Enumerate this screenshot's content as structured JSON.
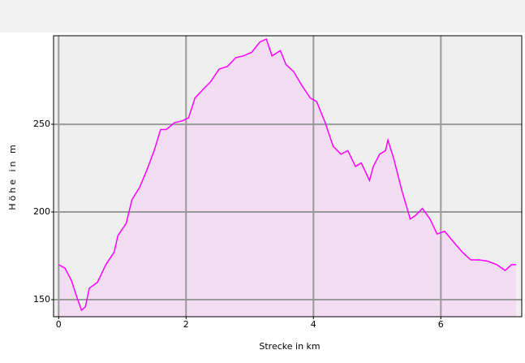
{
  "chart_data": {
    "type": "area",
    "x_label": "Strecke in km",
    "y_label": "Höhe in m",
    "x": [
      0,
      0.1,
      0.2,
      0.3,
      0.36,
      0.42,
      0.48,
      0.61,
      0.74,
      0.87,
      0.93,
      1.06,
      1.15,
      1.27,
      1.38,
      1.5,
      1.6,
      1.69,
      1.82,
      1.94,
      2.04,
      2.14,
      2.27,
      2.39,
      2.52,
      2.65,
      2.78,
      2.9,
      3.03,
      3.16,
      3.26,
      3.35,
      3.48,
      3.57,
      3.69,
      3.82,
      3.95,
      4.05,
      4.18,
      4.31,
      4.43,
      4.54,
      4.66,
      4.75,
      4.88,
      4.94,
      5.04,
      5.13,
      5.17,
      5.26,
      5.39,
      5.52,
      5.6,
      5.71,
      5.83,
      5.94,
      6.06,
      6.22,
      6.34,
      6.47,
      6.6,
      6.73,
      6.88,
      7.01,
      7.11,
      7.18
    ],
    "values": [
      170,
      168,
      161,
      150,
      144,
      146,
      156.5,
      160,
      170,
      177,
      186.5,
      193.5,
      207,
      214,
      223.5,
      235,
      247,
      247,
      251,
      252,
      253.7,
      265,
      270,
      274.5,
      281.5,
      283,
      288,
      289,
      291,
      297,
      298.6,
      289,
      292,
      284,
      280,
      272,
      265,
      263,
      251.4,
      237.5,
      233,
      235,
      226,
      228,
      218,
      226,
      233,
      235,
      241,
      230.5,
      212,
      196,
      198,
      202,
      196,
      187.5,
      189,
      182,
      177,
      172.7,
      172.7,
      172,
      170,
      166.7,
      170,
      170
    ],
    "color": "#ff00ff",
    "fill_color": "#f3ddf3",
    "xlim": [
      -0.08,
      7.27
    ],
    "xticks": [
      0,
      2,
      4,
      6
    ],
    "ylim": [
      140.3,
      300.5
    ],
    "yticks": [
      150,
      200,
      250
    ],
    "grid": true
  }
}
